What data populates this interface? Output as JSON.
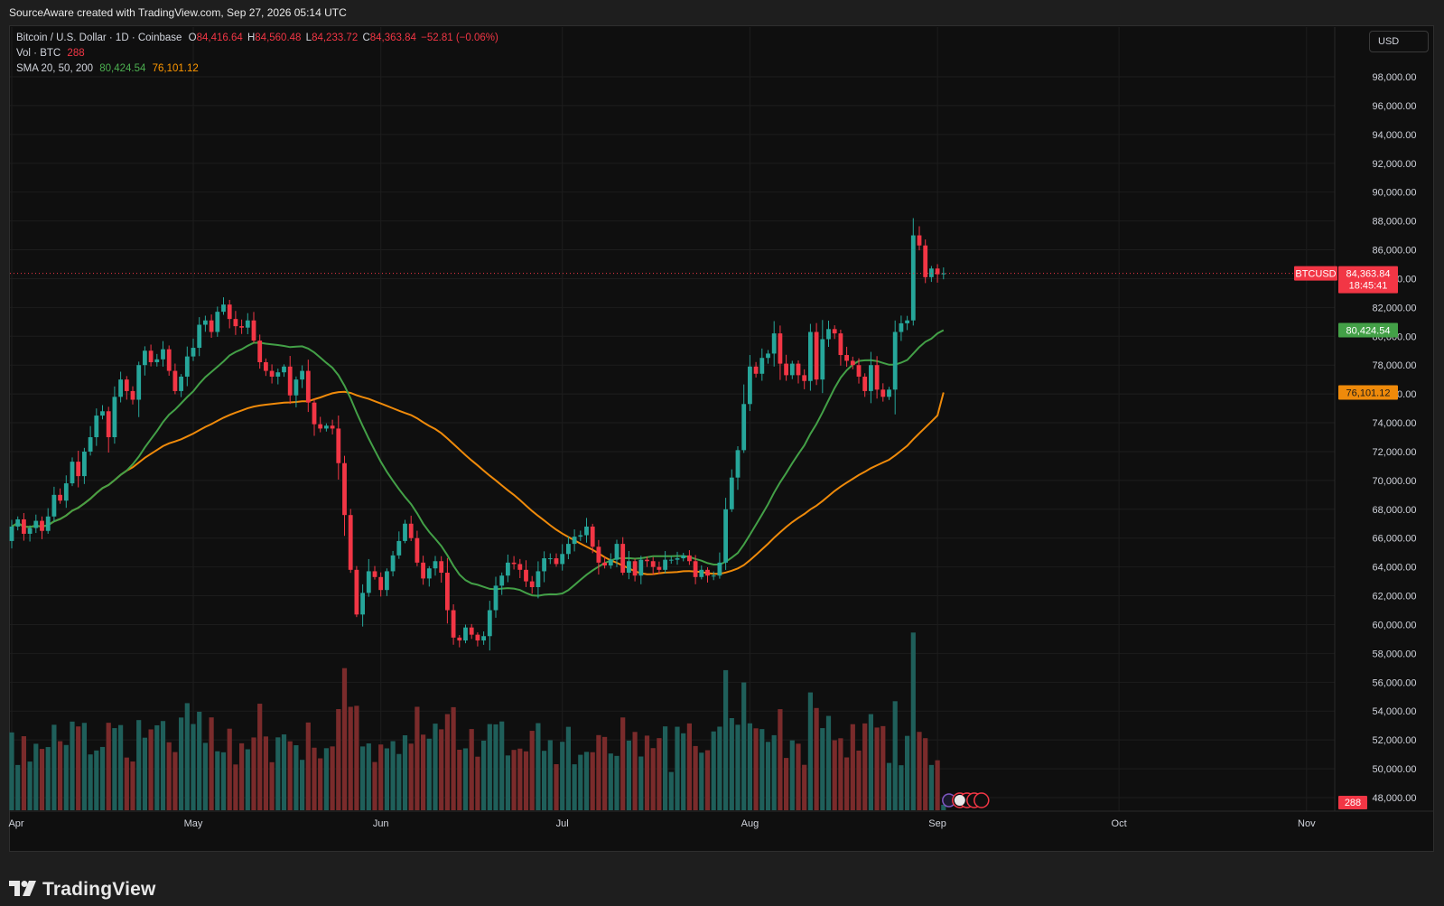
{
  "header": {
    "credit": "SourceAware created with TradingView.com, Sep 27, 2026 05:14 UTC"
  },
  "legend": {
    "symbol": "Bitcoin / U.S. Dollar · 1D · Coinbase",
    "o_label": "O",
    "o_value": "84,416.64",
    "h_label": "H",
    "h_value": "84,560.48",
    "l_label": "L",
    "l_value": "84,233.72",
    "c_label": "C",
    "c_value": "84,363.84",
    "change": "−52.81 (−0.06%)",
    "vol_label": "Vol · BTC",
    "vol_value": "288",
    "sma_label": "SMA 20, 50, 200",
    "sma20_value": "80,424.54",
    "sma50_value": "76,101.12"
  },
  "currency_button": "USD",
  "footer": {
    "brand": "TradingView"
  },
  "colors": {
    "up": "#26a69a",
    "down": "#f23645",
    "vol_up": "#1f5f5a",
    "vol_down": "#7a2b2b",
    "sma20": "#43a047",
    "sma50": "#ef8a0a",
    "background": "#0f0f0f",
    "grid": "#1d1d1d"
  },
  "chart_data": {
    "type": "candlestick",
    "symbol": "BTCUSD",
    "y_ticks": [
      "48,000.00",
      "50,000.00",
      "52,000.00",
      "54,000.00",
      "56,000.00",
      "58,000.00",
      "60,000.00",
      "62,000.00",
      "64,000.00",
      "66,000.00",
      "68,000.00",
      "70,000.00",
      "72,000.00",
      "74,000.00",
      "76,000.00",
      "78,000.00",
      "80,000.00",
      "82,000.00",
      "84,000.00",
      "86,000.00",
      "88,000.00",
      "90,000.00",
      "92,000.00",
      "94,000.00",
      "96,000.00",
      "98,000.00"
    ],
    "ylim": [
      47000,
      100500
    ],
    "x_ticks": [
      {
        "label": "Apr",
        "date": "2026-04-01"
      },
      {
        "label": "May",
        "date": "2026-05-01"
      },
      {
        "label": "Jun",
        "date": "2026-06-01"
      },
      {
        "label": "Jul",
        "date": "2026-07-01"
      },
      {
        "label": "Aug",
        "date": "2026-08-01"
      },
      {
        "label": "Sep",
        "date": "2026-09-01"
      },
      {
        "label": "Oct",
        "date": "2026-10-01"
      },
      {
        "label": "Nov",
        "date": "2026-11-01"
      }
    ],
    "start_date": "2026-04-01",
    "last_price": 84363.84,
    "last_price_label": "84,363.84",
    "countdown": "18:45:41",
    "symbol_tag": "BTCUSD",
    "sma20_last": 80424.54,
    "sma20_label": "80,424.54",
    "sma50_last": 76101.12,
    "sma50_label": "76,101.12",
    "vol_last_label": "288",
    "close": [
      66800,
      67300,
      66300,
      66700,
      67200,
      66500,
      67500,
      69000,
      68600,
      69800,
      71300,
      70300,
      72000,
      73000,
      74500,
      74800,
      73000,
      75800,
      77000,
      76200,
      75600,
      78000,
      79000,
      78200,
      78400,
      79100,
      77600,
      76200,
      77200,
      78600,
      79200,
      80800,
      81100,
      80300,
      81700,
      82200,
      81200,
      80700,
      80600,
      81100,
      79700,
      78200,
      77600,
      77200,
      77500,
      77900,
      75900,
      77000,
      77600,
      75400,
      73900,
      73600,
      73800,
      73600,
      71200,
      67600,
      63800,
      60700,
      62200,
      63700,
      63300,
      62400,
      63700,
      64800,
      65800,
      67000,
      66000,
      64300,
      63200,
      63900,
      64400,
      63600,
      61000,
      59100,
      58900,
      59800,
      59300,
      58900,
      59200,
      61000,
      62700,
      63400,
      64300,
      64200,
      63800,
      63000,
      62600,
      63700,
      64600,
      64600,
      64200,
      64900,
      65600,
      66100,
      66200,
      66800,
      65400,
      64300,
      64100,
      64500,
      65600,
      63600,
      64400,
      63400,
      64500,
      64400,
      64000,
      63800,
      64500,
      64500,
      64600,
      64800,
      64400,
      63300,
      63800,
      63400,
      63400,
      64300,
      68000,
      70200,
      72100,
      75300,
      77900,
      77400,
      78500,
      78800,
      80200,
      78100,
      77300,
      78100,
      77300,
      76900,
      80300,
      77000,
      79800,
      80500,
      80200,
      78700,
      78300,
      78000,
      77200,
      76200,
      78000,
      76300,
      75800,
      76300,
      80300,
      80900,
      81100,
      87000,
      86300,
      84100,
      84700,
      84300,
      84364
    ],
    "open_first": 65800,
    "sma20": {
      "name": "SMA 20"
    },
    "sma50": {
      "name": "SMA 50"
    },
    "volume_scale_max": 10000
  }
}
